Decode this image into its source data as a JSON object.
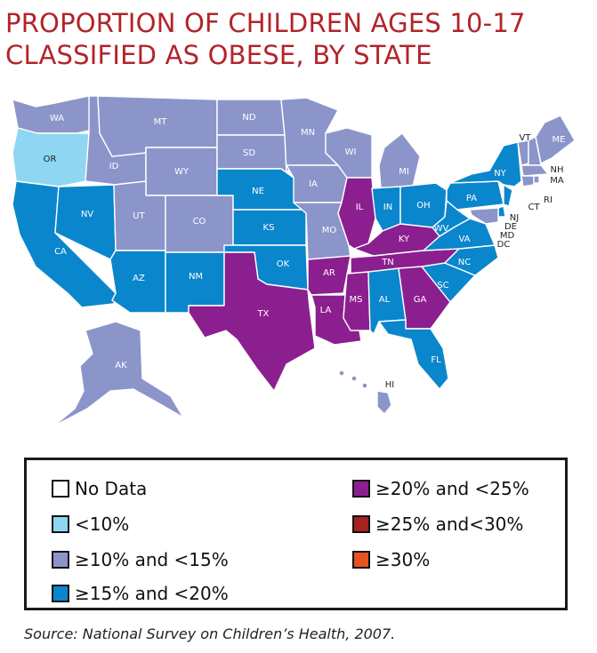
{
  "title_line1": "PROPORTION OF CHILDREN AGES 10-17",
  "title_line2": "CLASSIFIED AS OBESE, BY STATE",
  "source": "Source: National Survey on Children’s Health, 2007.",
  "colors": {
    "no_data": "#ffffff",
    "lt10": "#8fd6f2",
    "c10_15": "#8b95c9",
    "c15_20": "#0a86cc",
    "c20_25": "#8b1f8f",
    "c25_30": "#a8201f",
    "ge30": "#e8521e"
  },
  "legend": [
    {
      "label": "No Data",
      "color": "#ffffff"
    },
    {
      "label": "<10%",
      "color": "#8fd6f2"
    },
    {
      "label": "≥10% and <15%",
      "color": "#8b95c9"
    },
    {
      "label": "≥15% and <20%",
      "color": "#0a86cc"
    },
    {
      "label": "≥20% and <25%",
      "color": "#8b1f8f"
    },
    {
      "label": "≥25% and<30%",
      "color": "#a8201f"
    },
    {
      "label": "≥30%",
      "color": "#e8521e"
    }
  ],
  "states": [
    {
      "abbr": "WA",
      "category": "≥10% and <15%"
    },
    {
      "abbr": "OR",
      "category": "<10%"
    },
    {
      "abbr": "CA",
      "category": "≥15% and <20%"
    },
    {
      "abbr": "NV",
      "category": "≥15% and <20%"
    },
    {
      "abbr": "ID",
      "category": "≥10% and <15%"
    },
    {
      "abbr": "MT",
      "category": "≥10% and <15%"
    },
    {
      "abbr": "WY",
      "category": "≥10% and <15%"
    },
    {
      "abbr": "UT",
      "category": "≥10% and <15%"
    },
    {
      "abbr": "CO",
      "category": "≥10% and <15%"
    },
    {
      "abbr": "AZ",
      "category": "≥15% and <20%"
    },
    {
      "abbr": "NM",
      "category": "≥15% and <20%"
    },
    {
      "abbr": "ND",
      "category": "≥10% and <15%"
    },
    {
      "abbr": "SD",
      "category": "≥10% and <15%"
    },
    {
      "abbr": "NE",
      "category": "≥15% and <20%"
    },
    {
      "abbr": "KS",
      "category": "≥15% and <20%"
    },
    {
      "abbr": "OK",
      "category": "≥15% and <20%"
    },
    {
      "abbr": "TX",
      "category": "≥20% and <25%"
    },
    {
      "abbr": "MN",
      "category": "≥10% and <15%"
    },
    {
      "abbr": "IA",
      "category": "≥10% and <15%"
    },
    {
      "abbr": "MO",
      "category": "≥10% and <15%"
    },
    {
      "abbr": "AR",
      "category": "≥20% and <25%"
    },
    {
      "abbr": "LA",
      "category": "≥20% and <25%"
    },
    {
      "abbr": "WI",
      "category": "≥10% and <15%"
    },
    {
      "abbr": "IL",
      "category": "≥20% and <25%"
    },
    {
      "abbr": "MI",
      "category": "≥10% and <15%"
    },
    {
      "abbr": "IN",
      "category": "≥15% and <20%"
    },
    {
      "abbr": "OH",
      "category": "≥15% and <20%"
    },
    {
      "abbr": "KY",
      "category": "≥20% and <25%"
    },
    {
      "abbr": "TN",
      "category": "≥20% and <25%"
    },
    {
      "abbr": "MS",
      "category": "≥20% and <25%"
    },
    {
      "abbr": "AL",
      "category": "≥15% and <20%"
    },
    {
      "abbr": "GA",
      "category": "≥20% and <25%"
    },
    {
      "abbr": "FL",
      "category": "≥15% and <20%"
    },
    {
      "abbr": "SC",
      "category": "≥15% and <20%"
    },
    {
      "abbr": "NC",
      "category": "≥15% and <20%"
    },
    {
      "abbr": "VA",
      "category": "≥15% and <20%"
    },
    {
      "abbr": "WV",
      "category": "≥15% and <20%"
    },
    {
      "abbr": "PA",
      "category": "≥15% and <20%"
    },
    {
      "abbr": "NY",
      "category": "≥15% and <20%"
    },
    {
      "abbr": "VT",
      "category": "≥10% and <15%"
    },
    {
      "abbr": "NH",
      "category": "≥10% and <15%"
    },
    {
      "abbr": "ME",
      "category": "≥10% and <15%"
    },
    {
      "abbr": "MA",
      "category": "≥10% and <15%"
    },
    {
      "abbr": "RI",
      "category": "≥10% and <15%"
    },
    {
      "abbr": "CT",
      "category": "≥10% and <15%"
    },
    {
      "abbr": "NJ",
      "category": "≥15% and <20%"
    },
    {
      "abbr": "DE",
      "category": "≥15% and <20%"
    },
    {
      "abbr": "MD",
      "category": "≥10% and <15%"
    },
    {
      "abbr": "DC",
      "category": "≥10% and <15%"
    },
    {
      "abbr": "AK",
      "category": "≥10% and <15%"
    },
    {
      "abbr": "HI",
      "category": "≥10% and <15%"
    }
  ]
}
